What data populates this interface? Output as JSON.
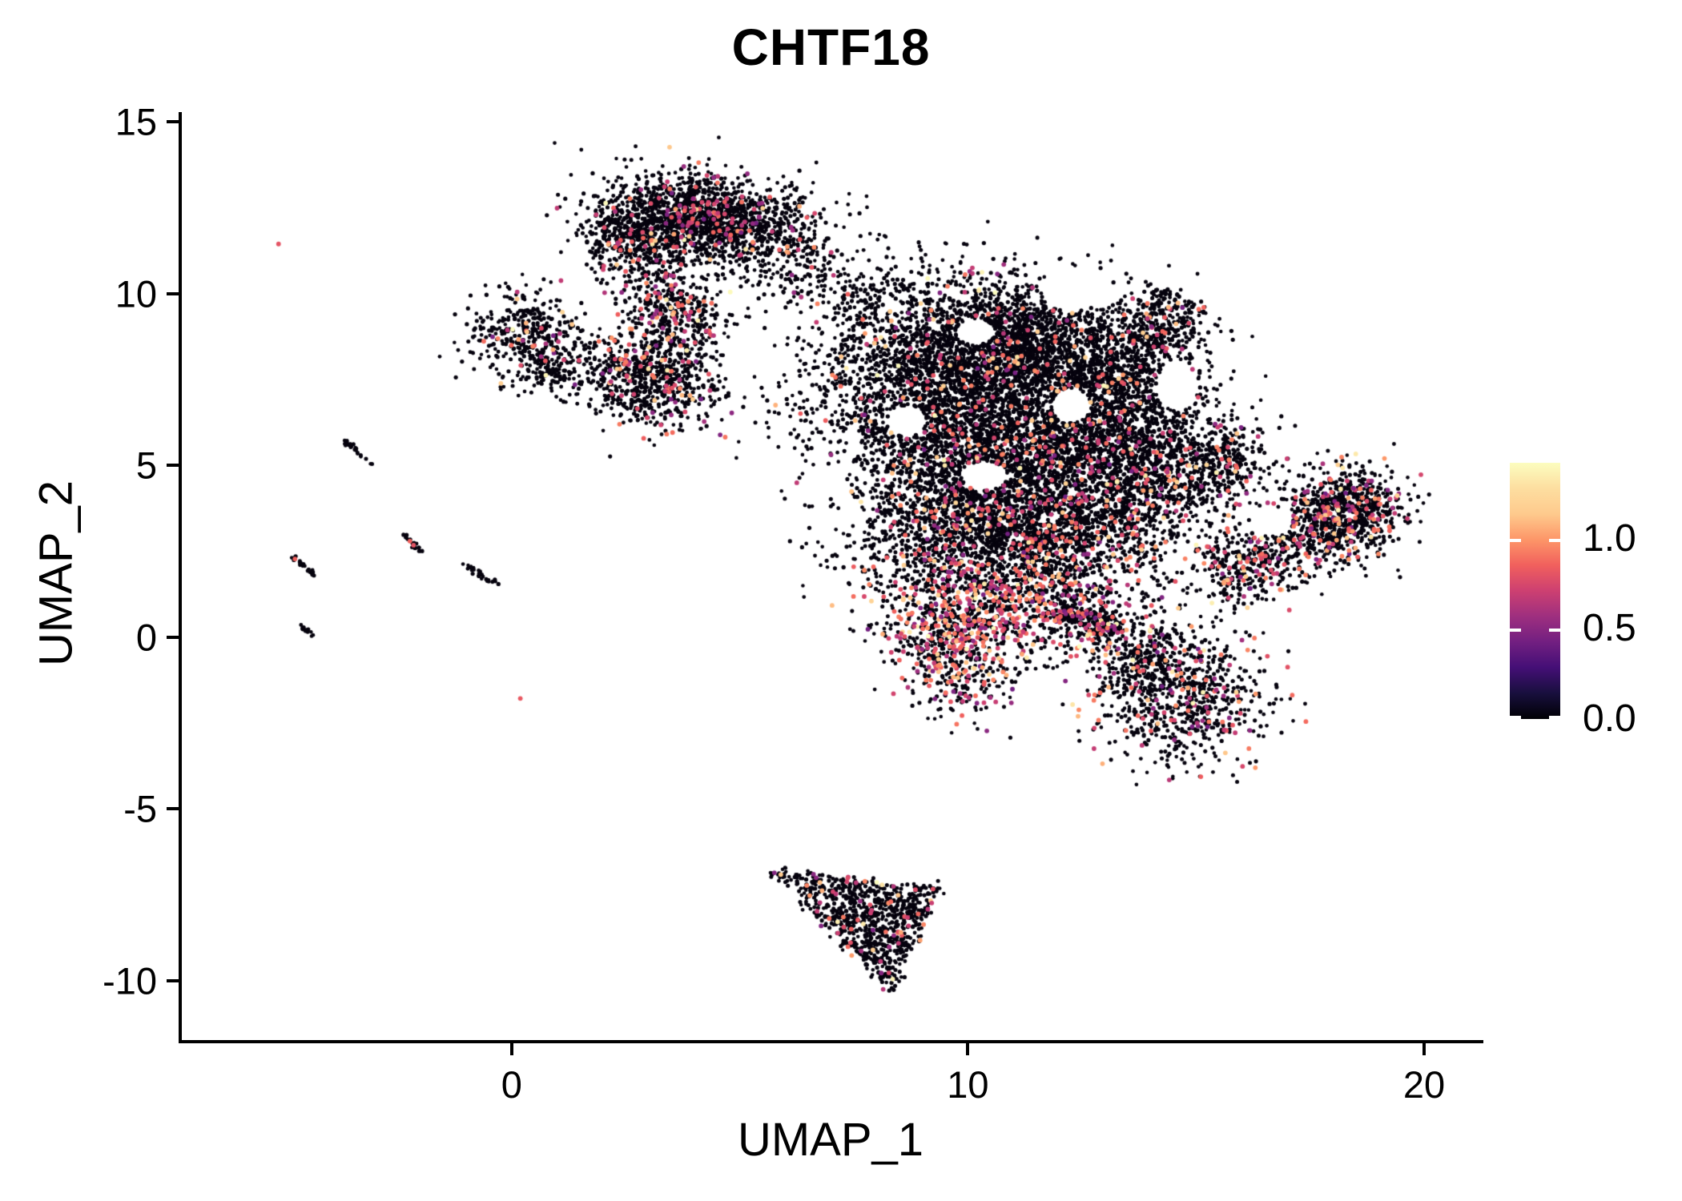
{
  "figure": {
    "title": "CHTF18",
    "x_axis_label": "UMAP_1",
    "y_axis_label": "UMAP_2"
  },
  "chart_data": {
    "type": "scatter",
    "title": "CHTF18",
    "xlabel": "UMAP_1",
    "ylabel": "UMAP_2",
    "xlim": [
      -7.3,
      21.3
    ],
    "ylim": [
      -11.82,
      15.29
    ],
    "x_ticks": [
      0,
      10,
      20
    ],
    "y_ticks": [
      15,
      10,
      5,
      0,
      -5,
      -10
    ],
    "grid": false,
    "legend": {
      "position": "right",
      "tick_labels": [
        "1.0",
        "0.5",
        "0.0"
      ],
      "tick_values": [
        1.0,
        0.5,
        0.0
      ],
      "vmin": 0.0,
      "vmax": 1.42
    },
    "colormap": {
      "name": "magma",
      "stops": [
        [
          0.0,
          "#000004"
        ],
        [
          0.1,
          "#180f3d"
        ],
        [
          0.2,
          "#440f76"
        ],
        [
          0.3,
          "#721f81"
        ],
        [
          0.4,
          "#9e2f7f"
        ],
        [
          0.5,
          "#cd4071"
        ],
        [
          0.6,
          "#f1605d"
        ],
        [
          0.7,
          "#fd9668"
        ],
        [
          0.8,
          "#feca8d"
        ],
        [
          0.9,
          "#fddea0"
        ],
        [
          1.0,
          "#fcfdbf"
        ]
      ]
    },
    "point_style": {
      "radius_nonexpressing": 2.25,
      "radius_expressing": 2.9,
      "nonexpressing_color": "#06030e"
    },
    "expression_value_mixture": [
      {
        "weight": 0.15,
        "range": [
          0.42,
          0.62
        ]
      },
      {
        "weight": 0.66,
        "range": [
          0.62,
          0.97
        ]
      },
      {
        "weight": 0.15,
        "range": [
          0.99,
          1.22
        ]
      },
      {
        "weight": 0.04,
        "range": [
          1.3,
          1.42
        ]
      }
    ],
    "seed": 1337,
    "clusters": [
      {
        "name": "cap-main",
        "kind": "blob",
        "cx": 3.95,
        "cy": 12.2,
        "sx": 1.05,
        "sy": 0.62,
        "rot": -4,
        "n": 1500,
        "expr": 0.07
      },
      {
        "name": "cap-west",
        "kind": "blob",
        "cx": 2.5,
        "cy": 11.6,
        "sx": 0.55,
        "sy": 0.55,
        "rot": 20,
        "n": 300,
        "expr": 0.06
      },
      {
        "name": "cap-east-wing",
        "kind": "blob",
        "cx": 5.85,
        "cy": 11.4,
        "sx": 0.8,
        "sy": 0.85,
        "rot": 0,
        "n": 300,
        "expr": 0.05
      },
      {
        "name": "cap-bridge",
        "kind": "band",
        "x1": 6.3,
        "y1": 10.8,
        "x2": 7.9,
        "y2": 9.5,
        "width": 0.8,
        "n": 100,
        "expr": 0.04
      },
      {
        "name": "stem",
        "kind": "blob",
        "cx": 3.4,
        "cy": 9.4,
        "sx": 0.55,
        "sy": 0.9,
        "rot": 12,
        "n": 500,
        "expr": 0.17
      },
      {
        "name": "left-small",
        "kind": "blob",
        "cx": 0.25,
        "cy": 8.85,
        "sx": 0.6,
        "sy": 0.65,
        "rot": -30,
        "n": 380,
        "expr": 0.08
      },
      {
        "name": "left-small-tail",
        "kind": "blob",
        "cx": 0.8,
        "cy": 7.85,
        "sx": 0.38,
        "sy": 0.4,
        "rot": 0,
        "n": 130,
        "expr": 0.08
      },
      {
        "name": "cluster-mid-left",
        "kind": "blob",
        "cx": 2.9,
        "cy": 7.45,
        "sx": 0.75,
        "sy": 0.62,
        "rot": -38,
        "n": 650,
        "expr": 0.1
      },
      {
        "name": "mid-sparse",
        "kind": "blob",
        "cx": 6.0,
        "cy": 6.6,
        "sx": 1.2,
        "sy": 0.9,
        "rot": 0,
        "n": 55,
        "expr": 0.05
      },
      {
        "name": "mass-left",
        "kind": "blob",
        "cx": 9.2,
        "cy": 7.4,
        "sx": 1.3,
        "sy": 1.45,
        "rot": 0,
        "n": 2400,
        "expr": 0.05
      },
      {
        "name": "mass-topmid",
        "kind": "blob",
        "cx": 11.1,
        "cy": 8.7,
        "sx": 1.15,
        "sy": 0.95,
        "rot": -12,
        "n": 1500,
        "expr": 0.05
      },
      {
        "name": "mass-right",
        "kind": "blob",
        "cx": 13.2,
        "cy": 7.3,
        "sx": 0.95,
        "sy": 1.15,
        "rot": 0,
        "n": 1250,
        "expr": 0.06
      },
      {
        "name": "mass-arm",
        "kind": "band",
        "x1": 13.8,
        "y1": 8.5,
        "x2": 14.6,
        "y2": 9.9,
        "width": 0.85,
        "n": 300,
        "expr": 0.06
      },
      {
        "name": "mass-mid",
        "kind": "blob",
        "cx": 11.4,
        "cy": 5.7,
        "sx": 1.5,
        "sy": 1.05,
        "rot": 0,
        "n": 1800,
        "expr": 0.07
      },
      {
        "name": "mass-lowleft",
        "kind": "blob",
        "cx": 9.6,
        "cy": 3.6,
        "sx": 1.15,
        "sy": 1.1,
        "rot": 0,
        "n": 1300,
        "expr": 0.09
      },
      {
        "name": "mass-lowmid",
        "kind": "blob",
        "cx": 11.9,
        "cy": 3.1,
        "sx": 1.2,
        "sy": 1.0,
        "rot": 0,
        "n": 1300,
        "expr": 0.1
      },
      {
        "name": "mass-rightlobe",
        "kind": "blob",
        "cx": 13.9,
        "cy": 4.7,
        "sx": 0.9,
        "sy": 1.1,
        "rot": 0,
        "n": 850,
        "expr": 0.08
      },
      {
        "name": "hook",
        "kind": "blob",
        "cx": 15.45,
        "cy": 5.05,
        "sx": 0.62,
        "sy": 0.6,
        "rot": 30,
        "n": 330,
        "expr": 0.1
      },
      {
        "name": "south-band",
        "kind": "blob",
        "cx": 10.9,
        "cy": 1.0,
        "sx": 1.45,
        "sy": 0.8,
        "rot": -10,
        "n": 950,
        "expr": 0.3
      },
      {
        "name": "neck",
        "kind": "blob",
        "cx": 9.55,
        "cy": -0.45,
        "sx": 0.7,
        "sy": 0.9,
        "rot": 15,
        "n": 550,
        "expr": 0.32
      },
      {
        "name": "spur",
        "kind": "band",
        "x1": 11.9,
        "y1": 0.9,
        "x2": 13.2,
        "y2": 0.1,
        "width": 0.55,
        "n": 230,
        "expr": 0.2
      },
      {
        "name": "right-band",
        "kind": "band",
        "x1": 15.35,
        "y1": 1.6,
        "x2": 19.0,
        "y2": 4.2,
        "width": 1.1,
        "n": 900,
        "expr": 0.16
      },
      {
        "name": "right-band-head",
        "kind": "blob",
        "cx": 18.2,
        "cy": 3.6,
        "sx": 0.72,
        "sy": 0.68,
        "rot": 35,
        "n": 450,
        "expr": 0.17
      },
      {
        "name": "cluster-southeast",
        "kind": "blob",
        "cx": 14.6,
        "cy": -1.7,
        "sx": 0.95,
        "sy": 1.0,
        "rot": 28,
        "n": 800,
        "expr": 0.13
      },
      {
        "name": "cluster-southeast-top",
        "kind": "blob",
        "cx": 13.75,
        "cy": -0.5,
        "sx": 0.45,
        "sy": 0.55,
        "rot": 0,
        "n": 200,
        "expr": 0.12
      },
      {
        "name": "bottom-triangle",
        "kind": "tri",
        "pts": [
          [
            5.55,
            -6.8
          ],
          [
            9.3,
            -7.3
          ],
          [
            8.25,
            -10.3
          ]
        ],
        "n": 900,
        "expr": 0.07
      }
    ],
    "streaks": [
      {
        "x1": -3.75,
        "y1": 5.7,
        "x2": -3.1,
        "y2": 5.05,
        "n": 26,
        "marks": []
      },
      {
        "x1": -4.95,
        "y1": 2.4,
        "x2": -4.35,
        "y2": 1.8,
        "n": 22,
        "marks": [
          {
            "x": -4.82,
            "y": 2.28,
            "v": 0.85
          }
        ]
      },
      {
        "x1": -2.5,
        "y1": 3.05,
        "x2": -2.0,
        "y2": 2.45,
        "n": 20,
        "marks": [
          {
            "x": -2.3,
            "y": 2.8,
            "v": 0.85
          },
          {
            "x": -2.22,
            "y": 2.68,
            "v": 0.8
          }
        ]
      },
      {
        "x1": -1.1,
        "y1": 2.15,
        "x2": -0.38,
        "y2": 1.5,
        "n": 28,
        "marks": []
      },
      {
        "x1": -4.7,
        "y1": 0.35,
        "x2": -4.38,
        "y2": -0.02,
        "n": 13,
        "marks": []
      }
    ],
    "singles": [
      {
        "x": -5.18,
        "y": 11.45,
        "v": 0.8
      },
      {
        "x": 0.12,
        "y": -1.78,
        "v": 0.82
      },
      {
        "x": 0.05,
        "y": 9.85,
        "v": 1.15
      },
      {
        "x": 0.68,
        "y": 7.63,
        "v": 1.38
      },
      {
        "x": 4.28,
        "y": 11.0,
        "v": 1.12
      },
      {
        "x": 15.28,
        "y": 1.0,
        "v": 1.35
      },
      {
        "x": 12.55,
        "y": 0.05,
        "v": 1.32
      },
      {
        "x": 9.05,
        "y": 10.45,
        "v": 1.4
      }
    ],
    "holes": [
      {
        "cx": 12.35,
        "cy": 10.15,
        "rx": 0.8,
        "ry": 0.6
      },
      {
        "cx": 14.5,
        "cy": 7.3,
        "rx": 0.45,
        "ry": 0.7
      },
      {
        "cx": 10.3,
        "cy": 4.7,
        "rx": 0.5,
        "ry": 0.42
      },
      {
        "cx": 12.2,
        "cy": 6.75,
        "rx": 0.42,
        "ry": 0.5
      },
      {
        "cx": 8.6,
        "cy": 6.3,
        "rx": 0.42,
        "ry": 0.45
      },
      {
        "cx": 10.1,
        "cy": 8.9,
        "rx": 0.42,
        "ry": 0.38
      },
      {
        "cx": 16.6,
        "cy": 3.35,
        "rx": 0.45,
        "ry": 0.4
      }
    ]
  }
}
